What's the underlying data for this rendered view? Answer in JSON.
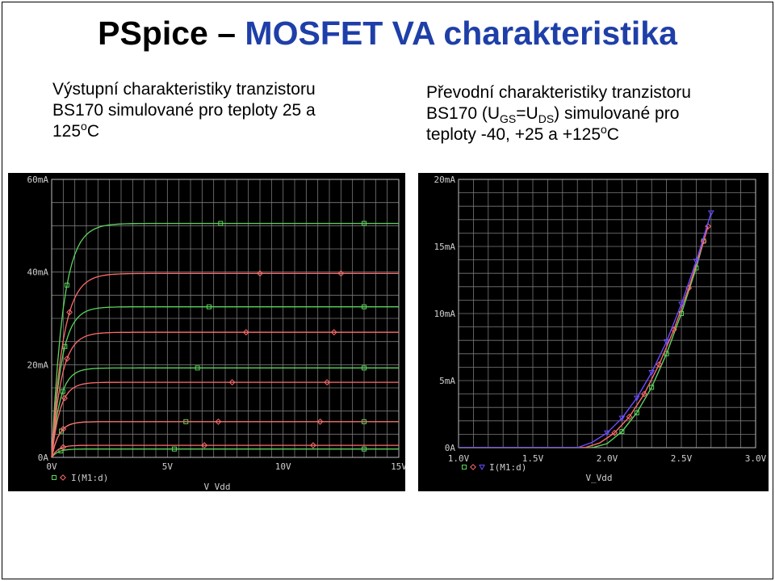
{
  "slide": {
    "title_black": "PSpice – ",
    "title_blue": "MOSFET VA charakteristika",
    "left_caption": {
      "line1": "Výstupní charakteristiky tranzistoru",
      "line2": "BS170 simulované pro teploty 25 a",
      "line3_num": "125",
      "line3_sup": "o",
      "line3_end": "C"
    },
    "right_caption": {
      "line1": "Převodní charakteristiky tranzistoru",
      "line2_a": "BS170 (U",
      "line2_sub1": "GS",
      "line2_b": "=U",
      "line2_sub2": "DS",
      "line2_c": ") simulované pro",
      "line3_a": "teploty -40, +25 a +125",
      "line3_sup": "o",
      "line3_end": "C"
    }
  },
  "colors": {
    "green": "#5cd45c",
    "red": "#ff6b6b",
    "purple": "#6d4cff",
    "grid": "#7a7a7a",
    "plot_bg": "#000000"
  },
  "chart_data": [
    {
      "type": "line",
      "x_ticks": [
        "0V",
        "5V",
        "10V",
        "15V"
      ],
      "y_ticks": [
        "0A",
        "20mA",
        "40mA",
        "60mA"
      ],
      "xlim": [
        0,
        15
      ],
      "ylim": [
        0,
        60
      ],
      "xlabel": "V_Vdd",
      "legend_text": "I(M1:d)",
      "legend_markers": [
        "square",
        "diamond"
      ],
      "series": [
        {
          "color": "green",
          "marker": "square",
          "saturation_mA": [
            50.5,
            32.5,
            19.3,
            7.7,
            1.8
          ]
        },
        {
          "color": "red",
          "marker": "diamond",
          "saturation_mA": [
            39.7,
            27.0,
            16.2,
            7.7,
            2.6
          ]
        }
      ]
    },
    {
      "type": "line",
      "x_ticks": [
        "1.0V",
        "1.5V",
        "2.0V",
        "2.5V",
        "3.0V"
      ],
      "y_ticks": [
        "0A",
        "5mA",
        "10mA",
        "15mA",
        "20mA"
      ],
      "xlim": [
        1.0,
        3.0
      ],
      "ylim": [
        0,
        20
      ],
      "xlabel": "V_Vdd",
      "legend_text": "I(M1:d)",
      "legend_markers": [
        "square",
        "diamond",
        "triangle"
      ],
      "series": [
        {
          "color": "green",
          "marker": "square",
          "x": [
            1.0,
            1.9,
            2.0,
            2.1,
            2.2,
            2.3,
            2.4,
            2.5,
            2.6,
            2.65
          ],
          "y": [
            0,
            0,
            0.3,
            1.2,
            2.6,
            4.5,
            7.0,
            10.0,
            13.4,
            15.4
          ]
        },
        {
          "color": "red",
          "marker": "diamond",
          "x": [
            1.0,
            1.85,
            1.95,
            2.05,
            2.15,
            2.25,
            2.35,
            2.45,
            2.55,
            2.65,
            2.68
          ],
          "y": [
            0,
            0,
            0.35,
            1.1,
            2.3,
            4.0,
            6.2,
            8.8,
            11.9,
            15.4,
            16.5
          ]
        },
        {
          "color": "purple",
          "marker": "triangle",
          "x": [
            1.0,
            1.8,
            1.9,
            2.0,
            2.1,
            2.2,
            2.3,
            2.4,
            2.5,
            2.6,
            2.7
          ],
          "y": [
            0,
            0,
            0.4,
            1.1,
            2.2,
            3.7,
            5.6,
            7.9,
            10.7,
            13.9,
            17.5
          ]
        }
      ]
    }
  ]
}
